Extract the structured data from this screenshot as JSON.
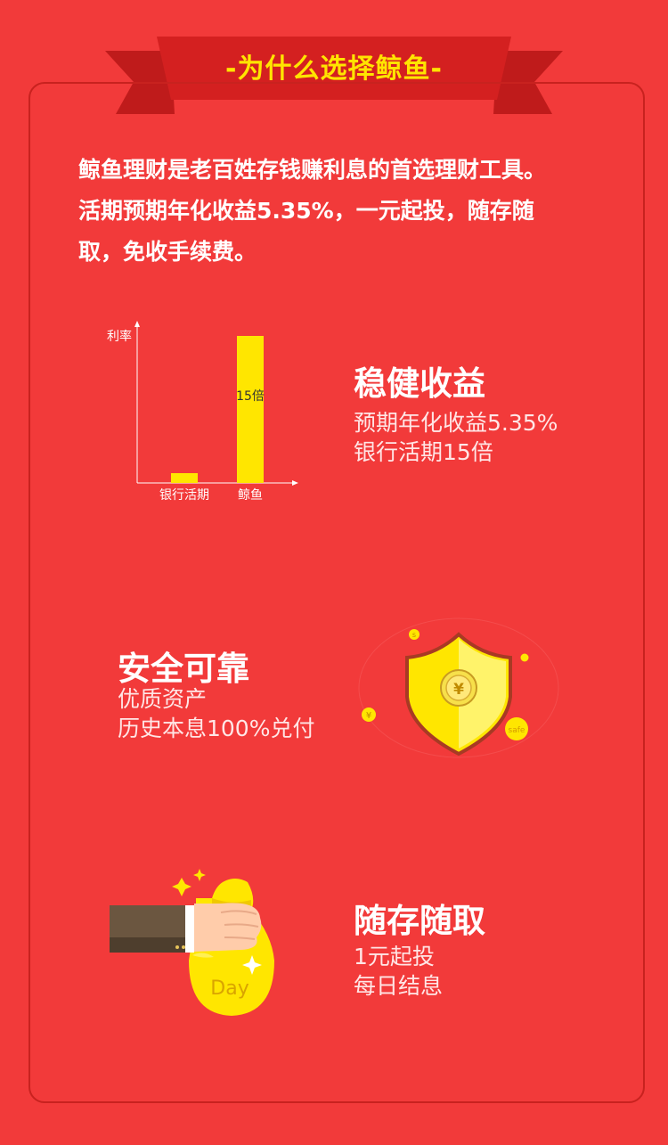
{
  "banner": {
    "title": "-为什么选择鲸鱼-"
  },
  "intro": {
    "lines": [
      "鲸鱼理财是老百姓存钱赚利息的首选理财工具。",
      "活期预期年化收益5.35%，一元起投，随存随",
      "取，免收手续费。"
    ]
  },
  "chart_data": {
    "type": "bar",
    "ylabel": "利率",
    "categories": [
      "银行活期",
      "鲸鱼"
    ],
    "values": [
      1,
      15
    ],
    "data_labels": [
      "",
      "15倍"
    ],
    "colors": {
      "bar": "#ffe600",
      "axis": "#ffffff"
    },
    "grid": false
  },
  "features": [
    {
      "title": "稳健收益",
      "lines": [
        "预期年化收益5.35%",
        "银行活期15倍"
      ]
    },
    {
      "title": "安全可靠",
      "lines": [
        "优质资产",
        "历史本息100%兑付"
      ]
    },
    {
      "title": "随存随取",
      "lines": [
        "1元起投",
        "每日结息"
      ]
    }
  ],
  "shield": {
    "symbol": "¥",
    "coin_symbol": "¥",
    "coin_label": "safe",
    "small_coin_label": "s"
  },
  "moneybag": {
    "label": "Day"
  },
  "colors": {
    "background": "#f23a3a",
    "ribbon": "#d42020",
    "title": "#ffe400",
    "accent": "#ffe600"
  }
}
